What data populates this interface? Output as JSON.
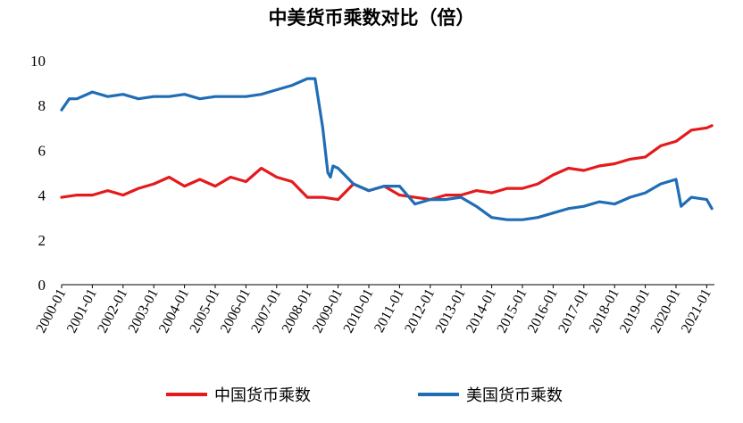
{
  "chart_data": {
    "type": "line",
    "title": "中美货币乘数对比（倍）",
    "xlabel": "",
    "ylabel": "",
    "ylim": [
      0,
      10
    ],
    "yticks": [
      "0",
      "2",
      "4",
      "6",
      "8",
      "10"
    ],
    "x_ticks": [
      "2000-01",
      "2001-01",
      "2002-01",
      "2003-01",
      "2004-01",
      "2005-01",
      "2006-01",
      "2007-01",
      "2008-01",
      "2009-01",
      "2010-01",
      "2011-01",
      "2012-01",
      "2013-01",
      "2014-01",
      "2015-01",
      "2016-01",
      "2017-01",
      "2018-01",
      "2019-01",
      "2020-01",
      "2021-01"
    ],
    "grid": false,
    "legend_position": "bottom",
    "series": [
      {
        "name": "中国货币乘数",
        "color": "#e41a1c",
        "x": [
          "2000-01",
          "2000-07",
          "2001-01",
          "2001-07",
          "2002-01",
          "2002-07",
          "2003-01",
          "2003-07",
          "2004-01",
          "2004-07",
          "2005-01",
          "2005-07",
          "2006-01",
          "2006-07",
          "2007-01",
          "2007-07",
          "2008-01",
          "2008-07",
          "2009-01",
          "2009-07",
          "2010-01",
          "2010-07",
          "2011-01",
          "2011-07",
          "2012-01",
          "2012-07",
          "2013-01",
          "2013-07",
          "2014-01",
          "2014-07",
          "2015-01",
          "2015-07",
          "2016-01",
          "2016-07",
          "2017-01",
          "2017-07",
          "2018-01",
          "2018-07",
          "2019-01",
          "2019-07",
          "2020-01",
          "2020-07",
          "2021-01",
          "2021-03"
        ],
        "values": [
          3.9,
          4.0,
          4.0,
          4.2,
          4.0,
          4.3,
          4.5,
          4.8,
          4.4,
          4.7,
          4.4,
          4.8,
          4.6,
          5.2,
          4.8,
          4.6,
          3.9,
          3.9,
          3.8,
          4.5,
          4.2,
          4.4,
          4.0,
          3.9,
          3.8,
          4.0,
          4.0,
          4.2,
          4.1,
          4.3,
          4.3,
          4.5,
          4.9,
          5.2,
          5.1,
          5.3,
          5.4,
          5.6,
          5.7,
          6.2,
          6.4,
          6.9,
          7.0,
          7.1
        ]
      },
      {
        "name": "美国货币乘数",
        "color": "#1f6db5",
        "x": [
          "2000-01",
          "2000-04",
          "2000-07",
          "2001-01",
          "2001-07",
          "2002-01",
          "2002-07",
          "2003-01",
          "2003-07",
          "2004-01",
          "2004-07",
          "2005-01",
          "2005-07",
          "2006-01",
          "2006-07",
          "2007-01",
          "2007-07",
          "2008-01",
          "2008-04",
          "2008-07",
          "2008-09",
          "2008-10",
          "2008-11",
          "2009-01",
          "2009-07",
          "2010-01",
          "2010-07",
          "2011-01",
          "2011-07",
          "2012-01",
          "2012-07",
          "2013-01",
          "2013-07",
          "2014-01",
          "2014-07",
          "2015-01",
          "2015-07",
          "2016-01",
          "2016-07",
          "2017-01",
          "2017-07",
          "2018-01",
          "2018-07",
          "2019-01",
          "2019-07",
          "2020-01",
          "2020-03",
          "2020-07",
          "2021-01",
          "2021-03"
        ],
        "values": [
          7.8,
          8.3,
          8.3,
          8.6,
          8.4,
          8.5,
          8.3,
          8.4,
          8.4,
          8.5,
          8.3,
          8.4,
          8.4,
          8.4,
          8.5,
          8.7,
          8.9,
          9.2,
          9.2,
          7.0,
          5.0,
          4.8,
          5.3,
          5.2,
          4.5,
          4.2,
          4.4,
          4.4,
          3.6,
          3.8,
          3.8,
          3.9,
          3.5,
          3.0,
          2.9,
          2.9,
          3.0,
          3.2,
          3.4,
          3.5,
          3.7,
          3.6,
          3.9,
          4.1,
          4.5,
          4.7,
          3.5,
          3.9,
          3.8,
          3.4
        ]
      }
    ]
  }
}
